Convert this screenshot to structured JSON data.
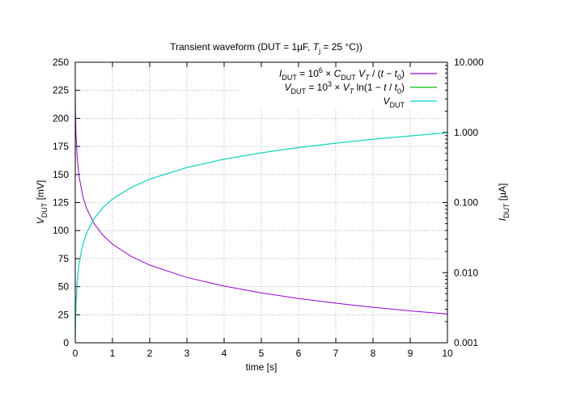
{
  "chart_data": {
    "type": "line",
    "title": [
      {
        "t": "Transient waveform (DUT = 1µF, "
      },
      {
        "t": "T",
        "s": "i"
      },
      {
        "t": "j",
        "s": "sub"
      },
      {
        "t": " = 25 °C))"
      }
    ],
    "xlabel": "time [s]",
    "ylabel_left": [
      {
        "t": "V",
        "s": "i"
      },
      {
        "t": "DUT",
        "s": "sub"
      },
      {
        "t": " [mV]"
      }
    ],
    "ylabel_right": [
      {
        "t": "I",
        "s": "i"
      },
      {
        "t": "DUT",
        "s": "sub"
      },
      {
        "t": " [µA]"
      }
    ],
    "xlim": [
      0,
      10
    ],
    "ylim_left": [
      0,
      250
    ],
    "ylim_right": [
      0.001,
      10
    ],
    "yscale_right": "log",
    "grid": true,
    "legend_position": "top-right",
    "xticks": [
      "0",
      "1",
      "2",
      "3",
      "4",
      "5",
      "6",
      "7",
      "8",
      "9",
      "10"
    ],
    "yticks_left": [
      "0",
      "25",
      "50",
      "75",
      "100",
      "125",
      "150",
      "175",
      "200",
      "225",
      "250"
    ],
    "yticks_right": [
      "0.001",
      "0.010",
      "0.100",
      "1.000",
      "10.000"
    ],
    "x": [
      0,
      0.002,
      0.005,
      0.01,
      0.02,
      0.05,
      0.1,
      0.2,
      0.3,
      0.5,
      0.75,
      1,
      1.5,
      2,
      3,
      4,
      5,
      6,
      7,
      8,
      9,
      10
    ],
    "series": [
      {
        "name": [
          {
            "t": "I",
            "s": "i"
          },
          {
            "t": "DUT",
            "s": "sub"
          },
          {
            "t": " = 10"
          },
          {
            "t": "6",
            "s": "sup"
          },
          {
            "t": " × "
          },
          {
            "t": "C",
            "s": "i"
          },
          {
            "t": "DUT",
            "s": "sub"
          },
          {
            "t": " "
          },
          {
            "t": "V",
            "s": "i"
          },
          {
            "t": "T",
            "s": "subi"
          },
          {
            "t": " / ("
          },
          {
            "t": "t",
            "s": "i"
          },
          {
            "t": " − "
          },
          {
            "t": "t",
            "s": "i"
          },
          {
            "t": "0",
            "s": "sub"
          },
          {
            "t": ")"
          }
        ],
        "axis": "right",
        "color": "#9400d3",
        "values": [
          3.72,
          2.888,
          2.16,
          1.521,
          0.955,
          0.452,
          0.24,
          0.1242,
          0.0837,
          0.0505,
          0.0339,
          0.0255,
          0.01705,
          0.01281,
          0.00855,
          0.00642,
          0.00514,
          0.00428,
          0.00367,
          0.00321,
          0.00285,
          0.00257
        ]
      },
      {
        "name": [
          {
            "t": "V",
            "s": "i"
          },
          {
            "t": "DUT",
            "s": "sub"
          },
          {
            "t": " = 10"
          },
          {
            "t": "3",
            "s": "sup"
          },
          {
            "t": " × "
          },
          {
            "t": "V",
            "s": "i"
          },
          {
            "t": "T",
            "s": "subi"
          },
          {
            "t": " ln(1 − "
          },
          {
            "t": "t",
            "s": "i"
          },
          {
            "t": " / "
          },
          {
            "t": "t",
            "s": "i"
          },
          {
            "t": "0",
            "s": "sub"
          },
          {
            "t": ")"
          }
        ],
        "axis": "left",
        "color": "#00c000",
        "values": [
          0,
          6.5,
          14.0,
          23.0,
          35.0,
          54.2,
          70.4,
          87.4,
          97.5,
          110.4,
          120.7,
          128.1,
          138.4,
          145.8,
          156.2,
          163.6,
          169.3,
          174.0,
          177.9,
          181.4,
          184.4,
          187.1
        ]
      },
      {
        "name": [
          {
            "t": "V",
            "s": "i"
          },
          {
            "t": "DUT",
            "s": "sub"
          }
        ],
        "axis": "left",
        "color": "#00d8d8",
        "values": [
          0,
          6.5,
          14.0,
          23.0,
          35.0,
          54.2,
          70.4,
          87.4,
          97.5,
          110.4,
          120.7,
          128.1,
          138.4,
          145.8,
          156.2,
          163.6,
          169.3,
          174.0,
          177.9,
          181.4,
          184.4,
          187.1
        ]
      }
    ]
  }
}
